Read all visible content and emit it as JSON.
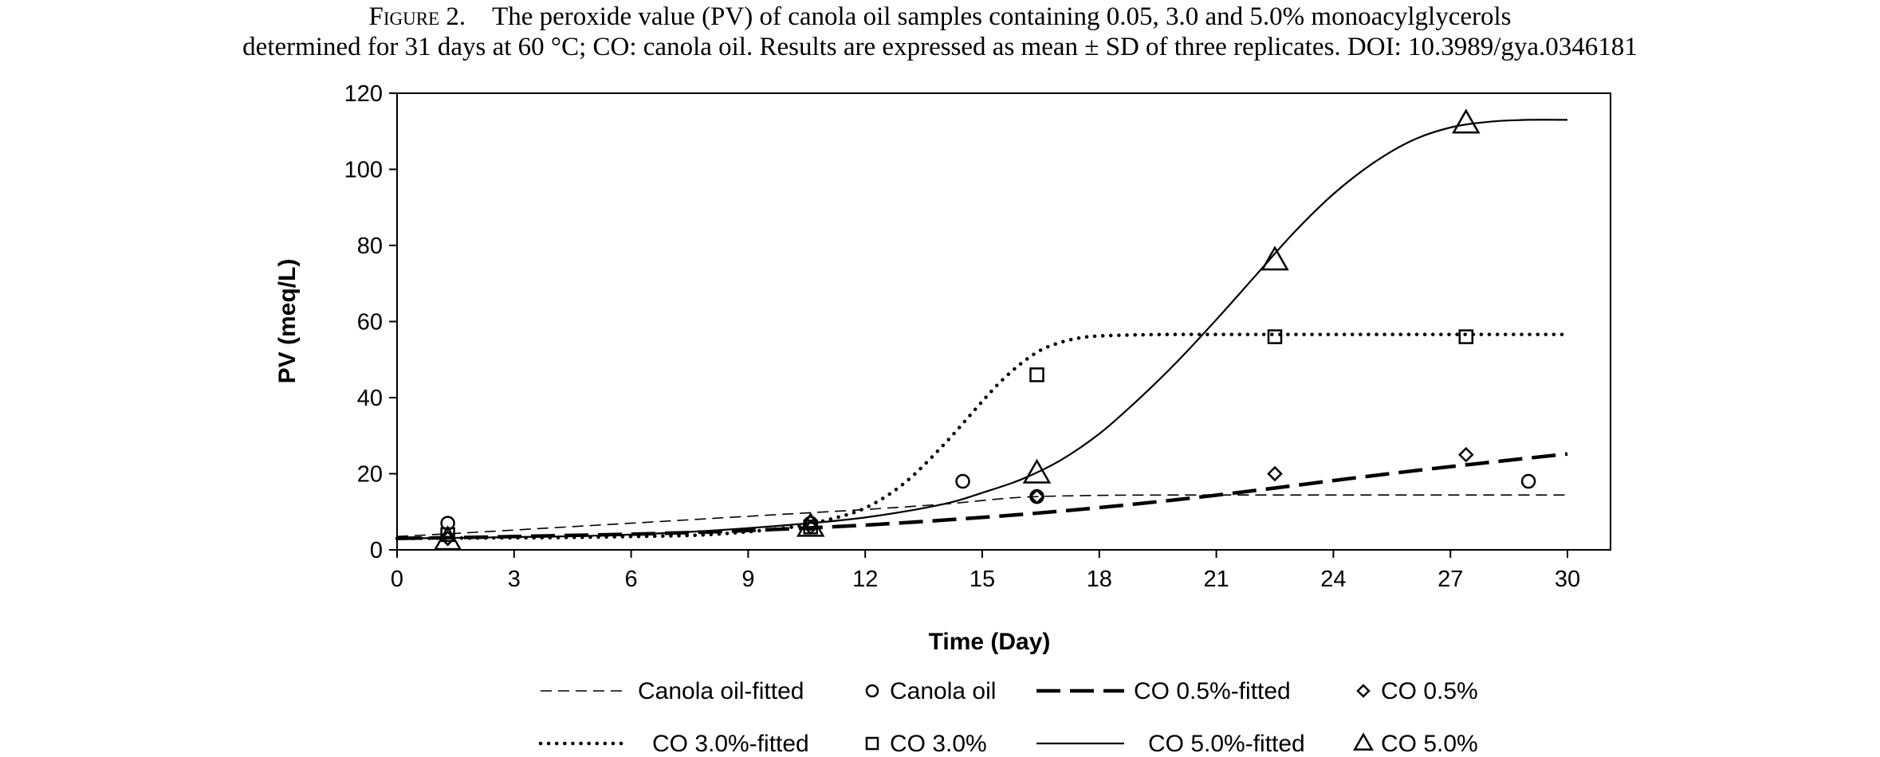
{
  "caption": {
    "figure_label": "Figure 2.",
    "line1": "The peroxide value (PV) of canola oil samples containing 0.05, 3.0 and 5.0% monoacylglycerols",
    "line2": "determined for 31 days at 60 °C; CO: canola oil. Results are expressed as mean ± SD of three replicates.  DOI: 10.3989/gya.0346181"
  },
  "chart_data": {
    "type": "scatter",
    "xlabel": "Time (Day)",
    "ylabel": "PV (meq/L)",
    "xlim": [
      0,
      30
    ],
    "ylim": [
      0,
      120
    ],
    "xticks": [
      0,
      3,
      6,
      9,
      12,
      15,
      18,
      21,
      24,
      27,
      30
    ],
    "yticks": [
      0,
      20,
      40,
      60,
      80,
      100,
      120
    ],
    "grid": false,
    "legend_position": "bottom",
    "series": [
      {
        "name": "Canola oil-fitted",
        "kind": "fitted",
        "line_style": "thin-dashed",
        "x": [
          0,
          2,
          4,
          6,
          8,
          10,
          12,
          14,
          16,
          18,
          20,
          22,
          24,
          26,
          28,
          30
        ],
        "y": [
          3.5,
          4.6,
          5.8,
          7,
          8.2,
          9.4,
          10.6,
          12,
          13.8,
          14.3,
          14.4,
          14.4,
          14.4,
          14.4,
          14.4,
          14.4
        ]
      },
      {
        "name": "Canola oil",
        "kind": "observed",
        "marker": "circle",
        "x": [
          1.3,
          10.6,
          14.5,
          16.4,
          29
        ],
        "y": [
          7,
          7,
          18,
          14,
          18
        ]
      },
      {
        "name": "CO 0.5%-fitted",
        "kind": "fitted",
        "line_style": "thick-dashed",
        "x": [
          0,
          2,
          4,
          6,
          8,
          10,
          12,
          14,
          16,
          18,
          20,
          22,
          24,
          26,
          28,
          30
        ],
        "y": [
          3,
          3.3,
          3.7,
          4.1,
          4.7,
          5.5,
          6.5,
          7.8,
          9.3,
          11.1,
          13.2,
          15.6,
          18.2,
          20.7,
          23,
          25.2
        ]
      },
      {
        "name": "CO 0.5%",
        "kind": "observed",
        "marker": "diamond",
        "x": [
          1.3,
          10.6,
          16.4,
          22.5,
          27.4
        ],
        "y": [
          3,
          6,
          14,
          20,
          25
        ]
      },
      {
        "name": "CO 3.0%-fitted",
        "kind": "fitted",
        "line_style": "dotted",
        "x": [
          0,
          2,
          4,
          6,
          8,
          10,
          11,
          12,
          13,
          14,
          15,
          15.5,
          16,
          16.5,
          17,
          17.5,
          18,
          19,
          20,
          22,
          25,
          30
        ],
        "y": [
          3,
          3.1,
          3.2,
          3.5,
          4,
          5.8,
          7.8,
          11,
          17.5,
          27.5,
          39,
          44.5,
          49,
          52.5,
          54.5,
          55.7,
          56.2,
          56.5,
          56.6,
          56.6,
          56.6,
          56.6
        ]
      },
      {
        "name": "CO 3.0%",
        "kind": "observed",
        "marker": "square",
        "x": [
          1.3,
          10.6,
          16.4,
          22.5,
          27.4
        ],
        "y": [
          4,
          6,
          46,
          56,
          56
        ]
      },
      {
        "name": "CO 5.0%-fitted",
        "kind": "fitted",
        "line_style": "solid",
        "x": [
          0,
          2,
          4,
          6,
          8,
          10,
          12,
          14,
          15,
          16,
          17,
          18,
          19,
          20,
          21,
          22,
          23,
          24,
          25,
          26,
          27,
          28,
          29,
          30
        ],
        "y": [
          3,
          3.2,
          3.5,
          4,
          5,
          6.5,
          8.5,
          12,
          15,
          18.5,
          23.5,
          30.5,
          39.5,
          49.5,
          60.5,
          72,
          83.5,
          93.5,
          101.5,
          107.5,
          111,
          112.5,
          113,
          113
        ]
      },
      {
        "name": "CO 5.0%",
        "kind": "observed",
        "marker": "triangle",
        "x": [
          1.3,
          10.6,
          16.4,
          22.5,
          27.4
        ],
        "y": [
          2.5,
          6,
          20,
          76,
          112
        ]
      }
    ]
  }
}
